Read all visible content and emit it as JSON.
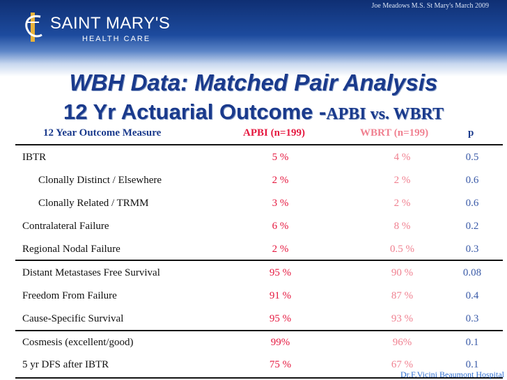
{
  "credit_top": "Joe Meadows M.S. St Mary's March 2009",
  "logo": {
    "name": "SAINT MARY'S",
    "sub": "HEALTH CARE"
  },
  "title": {
    "line1": "WBH Data: Matched Pair Analysis",
    "line2_main": "12 Yr Actuarial Outcome -",
    "line2_sub": "APBI vs. WBRT"
  },
  "table": {
    "headers": {
      "measure": "12 Year Outcome Measure",
      "apbi": "APBI (n=199)",
      "wbrt": "WBRT (n=199)",
      "p": "p"
    },
    "rows": [
      {
        "label": "IBTR",
        "apbi": "5 %",
        "wbrt": "4 %",
        "p": "0.5"
      },
      {
        "label": "Clonally Distinct / Elsewhere",
        "apbi": "2 %",
        "wbrt": "2 %",
        "p": "0.6"
      },
      {
        "label": "Clonally Related / TRMM",
        "apbi": "3 %",
        "wbrt": "2 %",
        "p": "0.6"
      },
      {
        "label": "Contralateral Failure",
        "apbi": "6 %",
        "wbrt": "8 %",
        "p": "0.2"
      },
      {
        "label": "Regional Nodal Failure",
        "apbi": "2 %",
        "wbrt": "0.5 %",
        "p": "0.3"
      },
      {
        "label": "Distant Metastases Free Survival",
        "apbi": "95 %",
        "wbrt": "90 %",
        "p": "0.08"
      },
      {
        "label": "Freedom From Failure",
        "apbi": "91 %",
        "wbrt": "87 %",
        "p": "0.4"
      },
      {
        "label": "Cause-Specific Survival",
        "apbi": "95 %",
        "wbrt": "93 %",
        "p": "0.3"
      },
      {
        "label": "Cosmesis (excellent/good)",
        "apbi": "99%",
        "wbrt": "96%",
        "p": "0.1"
      },
      {
        "label": "5 yr DFS after IBTR",
        "apbi": "75 %",
        "wbrt": "67 %",
        "p": "0.1"
      }
    ]
  },
  "credit_bottom": "Dr.F.Vicini Beaumont Hospital",
  "colors": {
    "header_band": "#1d4b9e",
    "title": "#1a3a8c",
    "apbi": "#e5183f",
    "wbrt": "#f08090",
    "p_value": "#3b5ba8",
    "credit_bottom": "#2e6dd0"
  }
}
